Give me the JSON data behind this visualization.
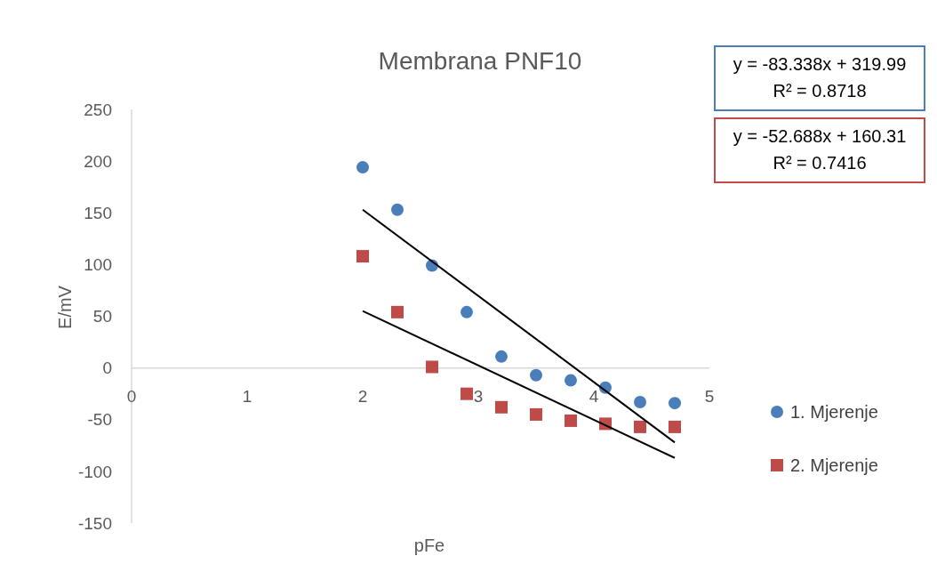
{
  "chart_data": {
    "type": "scatter",
    "title": "Membrana PNF10",
    "xlabel": "pFe",
    "ylabel": "E/mV",
    "xlim": [
      0,
      5
    ],
    "xticks": [
      0,
      1,
      2,
      3,
      4,
      5
    ],
    "ylim": [
      -150,
      250
    ],
    "yticks": [
      -150,
      -100,
      -50,
      0,
      50,
      100,
      150,
      200,
      250
    ],
    "grid": false,
    "legend": "right",
    "series": [
      {
        "name": "1. Mjerenje",
        "color": "#4a7ebb",
        "marker": "circle",
        "x": [
          2.0,
          2.3,
          2.6,
          2.9,
          3.2,
          3.5,
          3.8,
          4.1,
          4.4,
          4.7
        ],
        "values": [
          194,
          153,
          99,
          54,
          11,
          -7,
          -12,
          -19,
          -33,
          -34
        ]
      },
      {
        "name": "2. Mjerenje",
        "color": "#be4b48",
        "marker": "square",
        "x": [
          2.0,
          2.3,
          2.6,
          2.9,
          3.2,
          3.5,
          3.8,
          4.1,
          4.4,
          4.7
        ],
        "values": [
          108,
          54,
          1,
          -25,
          -38,
          -45,
          -51,
          -54,
          -57,
          -57
        ]
      },
      {
        "type": "line",
        "color": "#000000",
        "marker": "none",
        "line_style": "solid",
        "x": [
          2.0,
          4.7
        ],
        "values": [
          153,
          -72
        ]
      },
      {
        "type": "line",
        "color": "#000000",
        "marker": "none",
        "line_style": "solid",
        "x": [
          2.0,
          4.7
        ],
        "values": [
          55,
          -87
        ]
      }
    ],
    "annotations": [
      "y = -83.338x + 319.99",
      "R² = 0.8718",
      "y = -52.688x + 160.31",
      "R² = 0.7416"
    ]
  }
}
